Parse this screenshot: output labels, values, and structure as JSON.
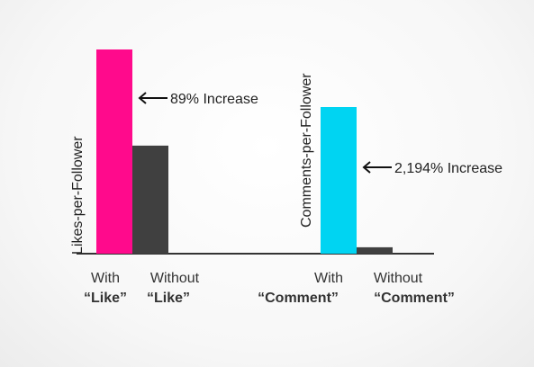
{
  "chart_data": [
    {
      "type": "bar",
      "ylabel": "Likes-per-Follower",
      "categories": [
        {
          "line1": "With",
          "line2": "“Like”"
        },
        {
          "line1": "Without",
          "line2": "“Like”"
        }
      ],
      "values": [
        1.89,
        1.0
      ],
      "colors": [
        "#ff0a8c",
        "#404040"
      ],
      "annotation": {
        "text": "89% Increase",
        "points_to": 0
      }
    },
    {
      "type": "bar",
      "ylabel": "Comments-per-Follower",
      "categories": [
        {
          "line1": "With",
          "line2": "“Comment”"
        },
        {
          "line1": "Without",
          "line2": "“Comment”"
        }
      ],
      "values": [
        22.94,
        1.0
      ],
      "colors": [
        "#00d4f2",
        "#404040"
      ],
      "annotation": {
        "text": "2,194% Increase",
        "points_to": 0
      }
    }
  ]
}
